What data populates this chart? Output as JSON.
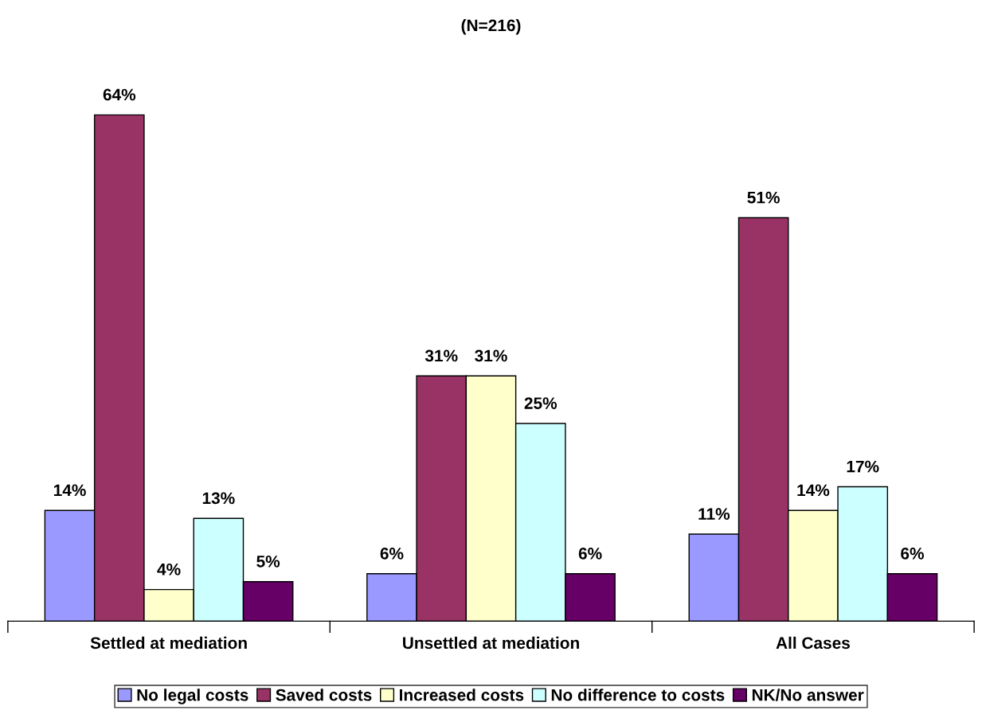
{
  "chart_data": {
    "type": "bar",
    "title": "(N=216)",
    "categories": [
      "Settled at mediation",
      "Unsettled at mediation",
      "All Cases"
    ],
    "series": [
      {
        "name": "No legal costs",
        "color": "#9999ff",
        "values": [
          14,
          6,
          11
        ],
        "value_labels": [
          "14%",
          "6%",
          "11%"
        ]
      },
      {
        "name": "Saved costs",
        "color": "#993366",
        "values": [
          64,
          31,
          51
        ],
        "value_labels": [
          "64%",
          "31%",
          "51%"
        ]
      },
      {
        "name": "Increased costs",
        "color": "#ffffcc",
        "values": [
          4,
          31,
          14
        ],
        "value_labels": [
          "4%",
          "31%",
          "14%"
        ]
      },
      {
        "name": "No difference to costs",
        "color": "#ccffff",
        "values": [
          13,
          25,
          17
        ],
        "value_labels": [
          "13%",
          "25%",
          "17%"
        ]
      },
      {
        "name": "NK/No answer",
        "color": "#660066",
        "values": [
          5,
          6,
          6
        ],
        "value_labels": [
          "5%",
          "6%",
          "6%"
        ]
      }
    ],
    "legend": "bottom",
    "grid": false
  }
}
